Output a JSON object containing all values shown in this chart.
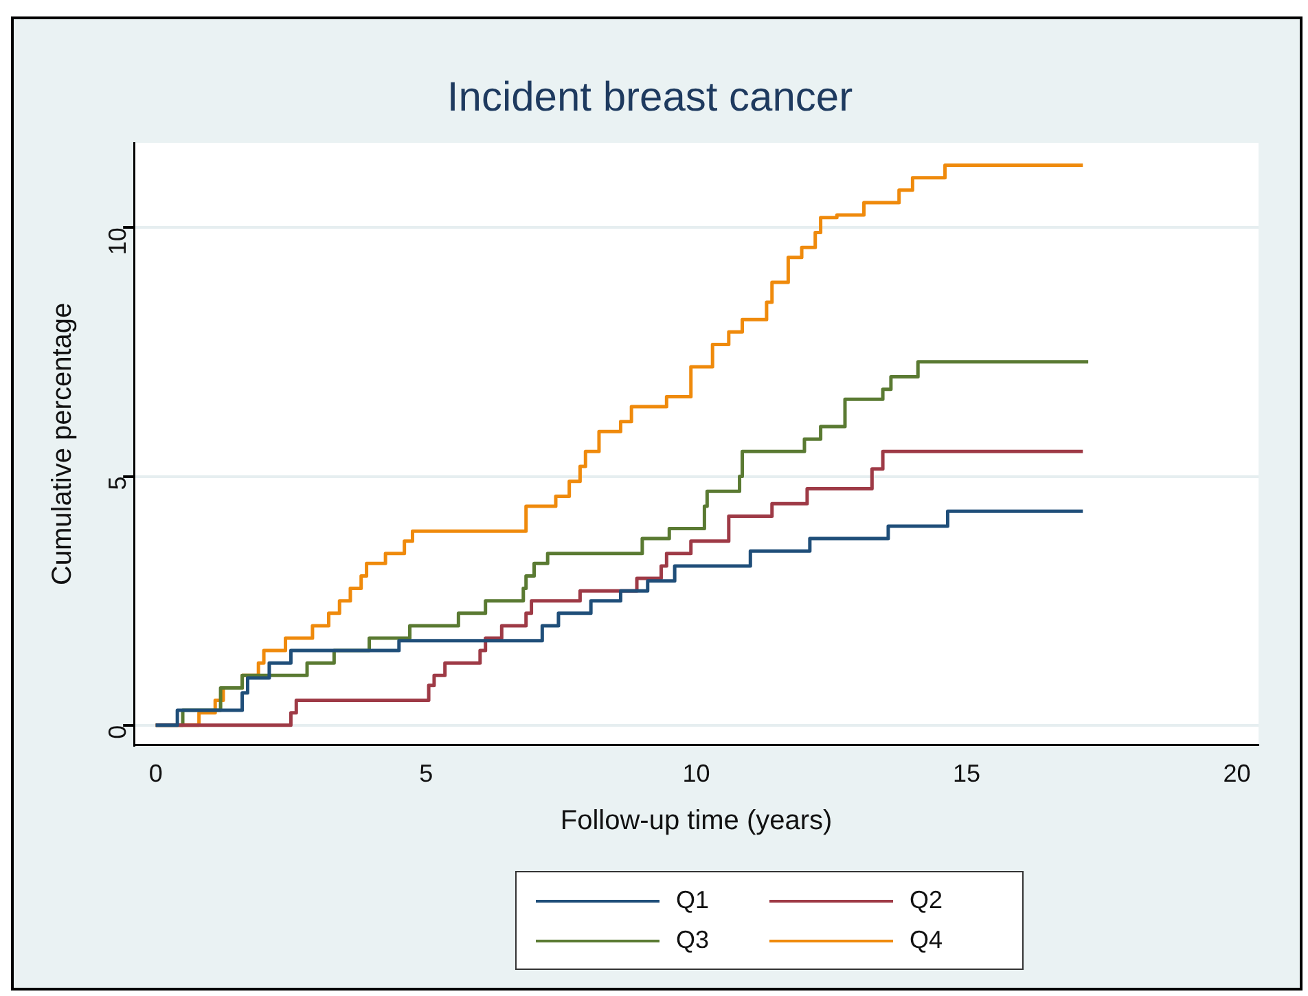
{
  "chart_data": {
    "type": "step",
    "title": "Incident breast cancer",
    "xlabel": "Follow-up time (years)",
    "ylabel": "Cumulative percentage",
    "xlim": [
      -0.4,
      20.4
    ],
    "xticks": [
      0,
      5,
      10,
      15,
      20
    ],
    "ylim": [
      -0.4,
      11.7
    ],
    "yticks": [
      0,
      5,
      10
    ],
    "grid": "y",
    "legend": "bottom",
    "marker": "none",
    "line_style": "solid",
    "series": [
      {
        "name": "Q1",
        "color": "#1f4e79",
        "x": [
          0,
          0.4,
          1.6,
          1.7,
          2.1,
          2.5,
          4.5,
          7.15,
          7.45,
          8.05,
          8.6,
          9.1,
          9.6,
          11.0,
          12.1,
          13.55,
          14.65,
          17.15
        ],
        "values": [
          0,
          0.3,
          0.65,
          0.95,
          1.25,
          1.5,
          1.7,
          2.0,
          2.25,
          2.5,
          2.7,
          2.9,
          3.2,
          3.5,
          3.75,
          4.0,
          4.3,
          4.3
        ]
      },
      {
        "name": "Q2",
        "color": "#9e3a46",
        "x": [
          0,
          2.5,
          2.6,
          5.05,
          5.15,
          5.35,
          6.0,
          6.1,
          6.4,
          6.85,
          6.95,
          7.85,
          8.9,
          9.35,
          9.45,
          9.9,
          10.6,
          11.4,
          12.05,
          13.25,
          13.45,
          17.15
        ],
        "values": [
          0,
          0.25,
          0.5,
          0.8,
          1.0,
          1.25,
          1.5,
          1.75,
          2.0,
          2.25,
          2.5,
          2.7,
          2.95,
          3.2,
          3.45,
          3.7,
          4.2,
          4.45,
          4.75,
          5.15,
          5.5,
          5.5
        ]
      },
      {
        "name": "Q3",
        "color": "#5a7a32",
        "x": [
          0,
          0.5,
          1.2,
          1.6,
          2.8,
          3.3,
          3.95,
          4.7,
          5.6,
          6.1,
          6.8,
          6.85,
          7.0,
          7.25,
          9.0,
          9.5,
          10.15,
          10.2,
          10.8,
          10.85,
          12.0,
          12.3,
          12.75,
          13.45,
          13.6,
          14.1,
          17.25
        ],
        "values": [
          0,
          0.3,
          0.75,
          1.0,
          1.25,
          1.5,
          1.75,
          2.0,
          2.25,
          2.5,
          2.75,
          3.0,
          3.25,
          3.45,
          3.75,
          3.95,
          4.4,
          4.7,
          5.0,
          5.5,
          5.75,
          6.0,
          6.55,
          6.75,
          7.0,
          7.3,
          7.3
        ]
      },
      {
        "name": "Q4",
        "color": "#ef8a0c",
        "x": [
          0,
          0.8,
          1.1,
          1.25,
          1.6,
          1.9,
          2.0,
          2.4,
          2.9,
          3.2,
          3.4,
          3.6,
          3.8,
          3.9,
          4.25,
          4.6,
          4.75,
          4.95,
          6.85,
          7.4,
          7.65,
          7.85,
          7.95,
          8.2,
          8.6,
          8.8,
          9.45,
          9.9,
          10.3,
          10.6,
          10.85,
          11.3,
          11.4,
          11.7,
          11.95,
          12.2,
          12.3,
          12.6,
          13.1,
          13.75,
          14.0,
          14.6,
          17.15
        ],
        "values": [
          0,
          0.25,
          0.5,
          0.75,
          1.0,
          1.25,
          1.5,
          1.75,
          2.0,
          2.25,
          2.5,
          2.75,
          3.0,
          3.25,
          3.45,
          3.7,
          3.9,
          3.9,
          4.4,
          4.6,
          4.9,
          5.2,
          5.5,
          5.9,
          6.1,
          6.4,
          6.6,
          7.2,
          7.65,
          7.9,
          8.15,
          8.5,
          8.9,
          9.4,
          9.6,
          9.9,
          10.2,
          10.25,
          10.5,
          10.75,
          11.0,
          11.25,
          11.25
        ]
      }
    ]
  }
}
